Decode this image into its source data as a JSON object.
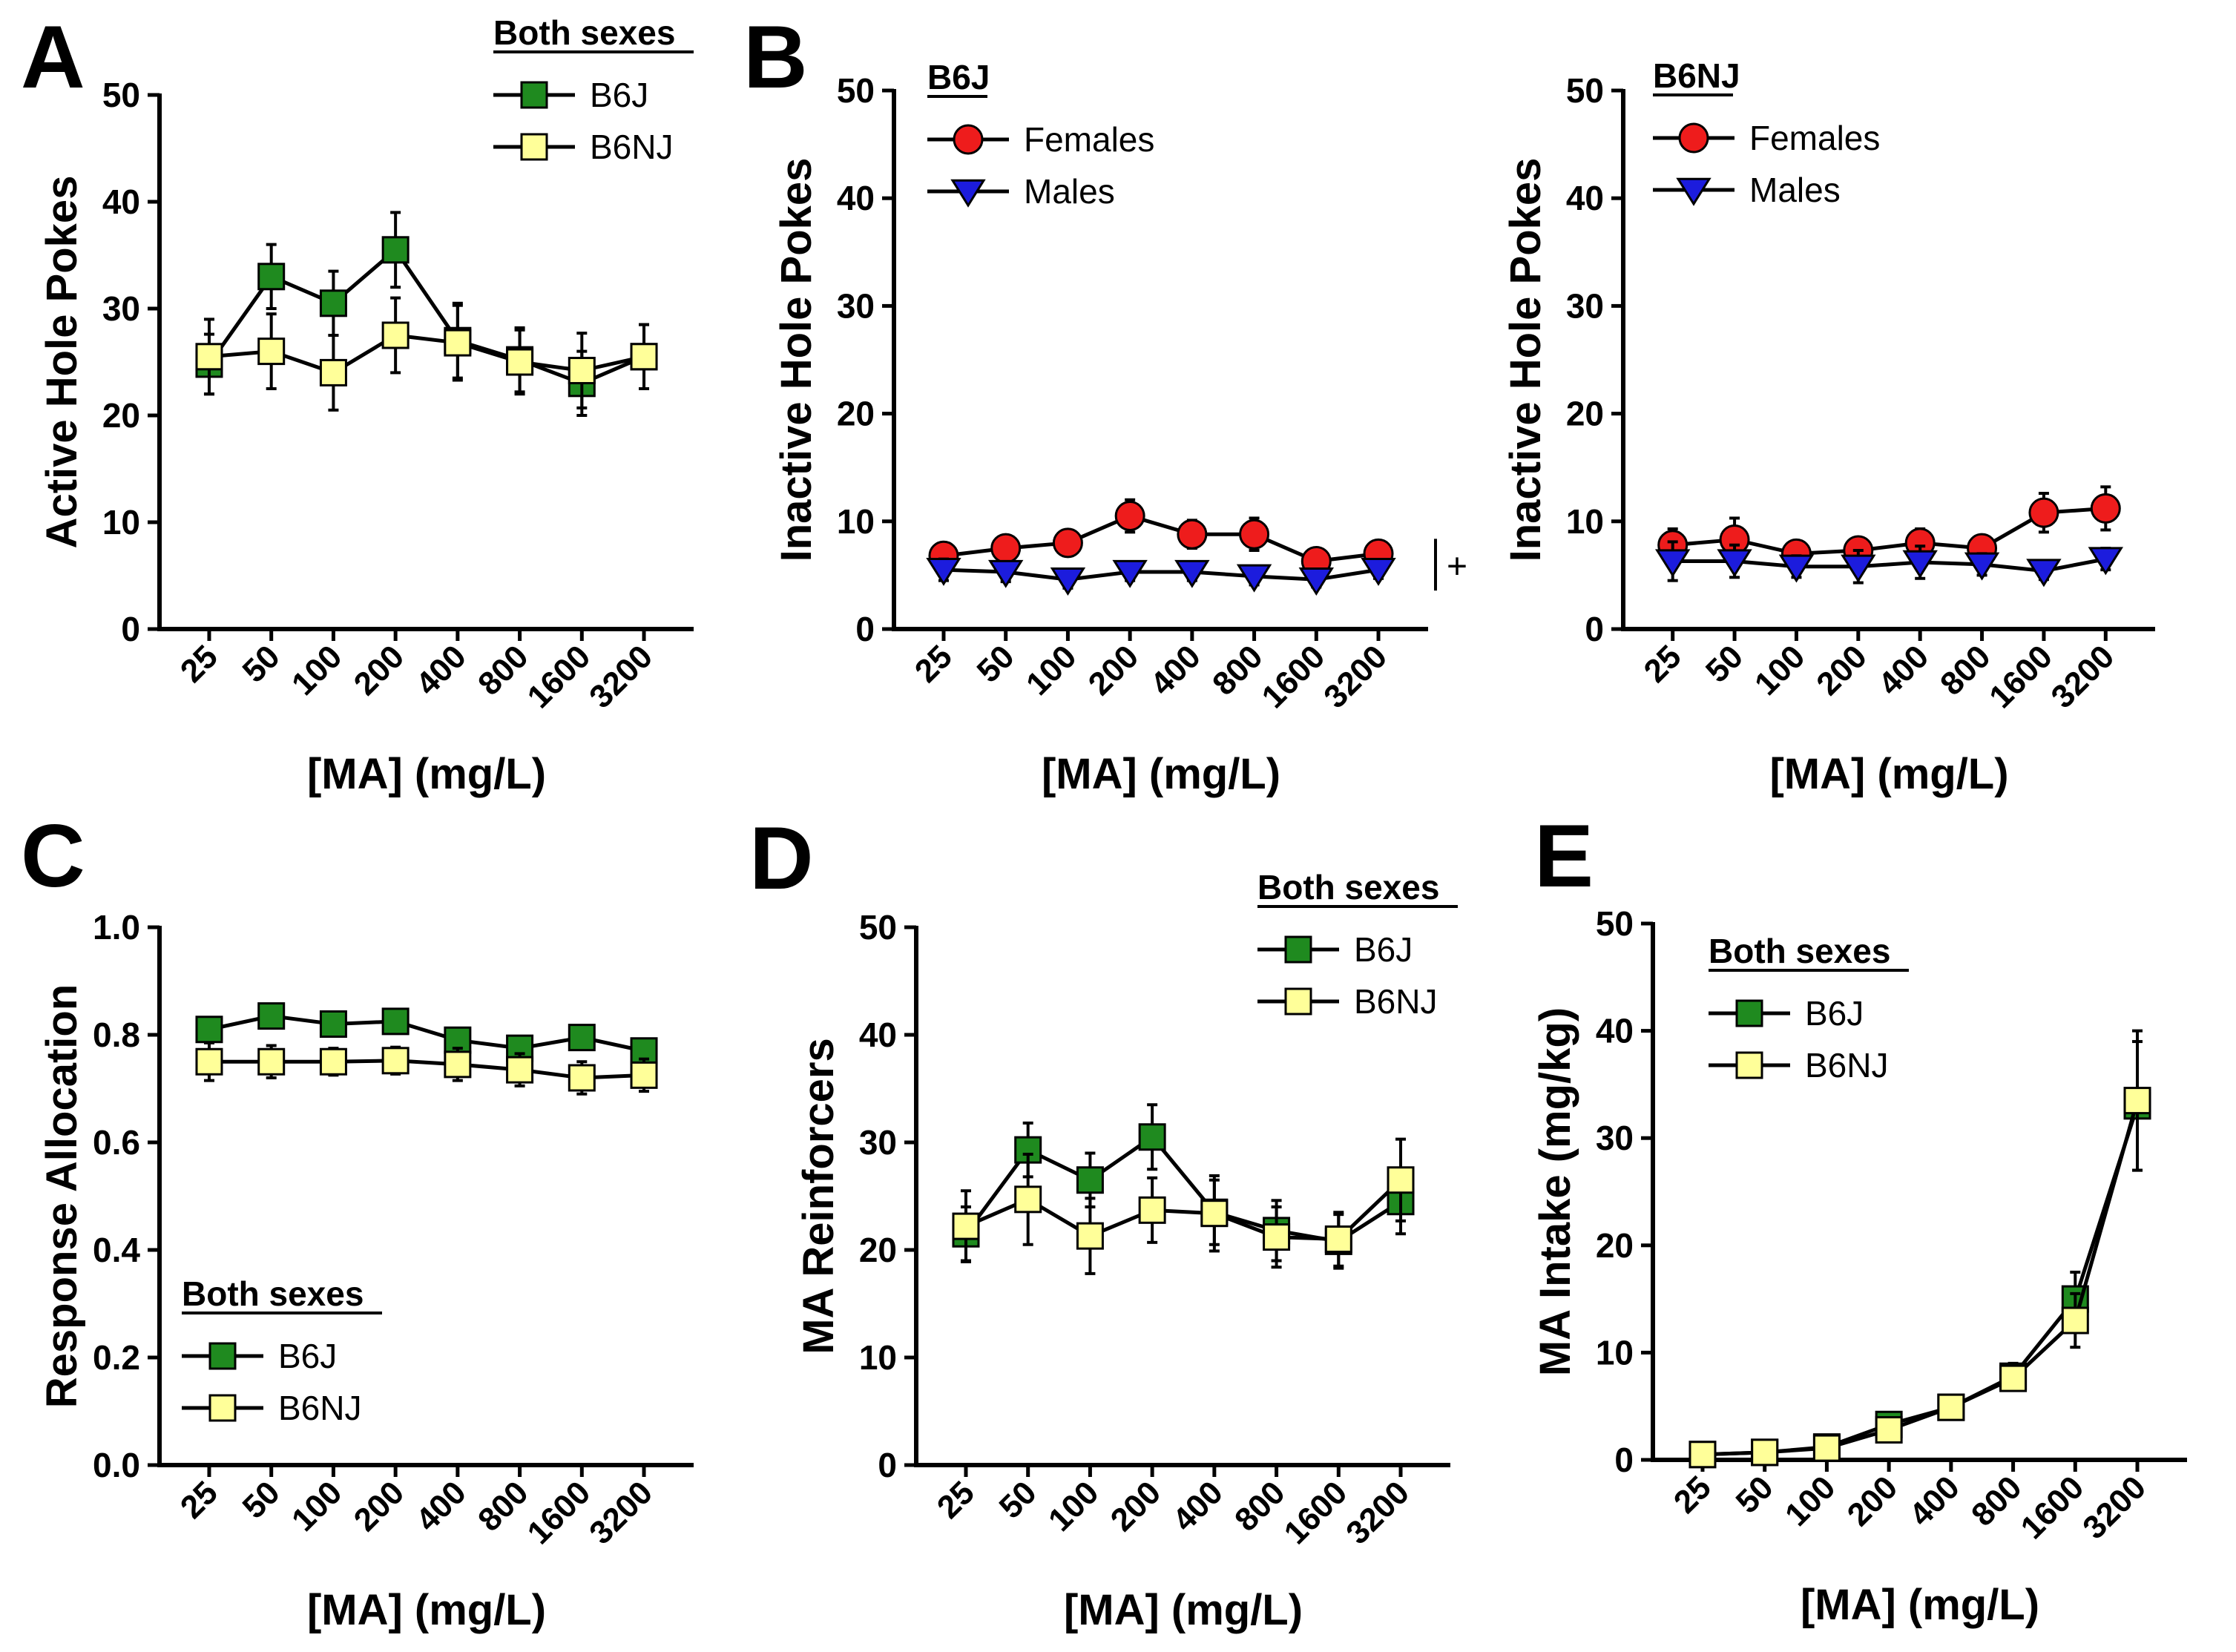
{
  "colors": {
    "B6J": "#1f8a1f",
    "B6NJ": "#ffff99",
    "Females": "#ee1c1c",
    "Males": "#1c1cdd",
    "line": "#000000"
  },
  "chart_data": [
    {
      "panel": "A",
      "type": "line",
      "ylabel": "Active Hole Pokes",
      "xlabel": "[MA] (mg/L)",
      "categories": [
        "25",
        "50",
        "100",
        "200",
        "400",
        "800",
        "1600",
        "3200"
      ],
      "ylim": [
        0,
        50
      ],
      "yticks": [
        "0",
        "10",
        "20",
        "30",
        "40",
        "50"
      ],
      "legend": {
        "title": "Both sexes",
        "position": "top-right"
      },
      "series": [
        {
          "name": "B6J",
          "marker": "square",
          "color": "#1f8a1f",
          "values": [
            24.8,
            33.0,
            30.5,
            35.5,
            27.0,
            25.2,
            23.0,
            25.5
          ],
          "errors": [
            2.8,
            3.0,
            3.0,
            3.5,
            3.5,
            3.0,
            3.0,
            3.0
          ]
        },
        {
          "name": "B6NJ",
          "marker": "square",
          "color": "#ffff99",
          "values": [
            25.5,
            26.0,
            24.0,
            27.5,
            26.8,
            25.0,
            24.2,
            25.5
          ],
          "errors": [
            3.5,
            3.5,
            3.5,
            3.5,
            3.5,
            3.0,
            3.5,
            3.0
          ]
        }
      ]
    },
    {
      "panel": "B",
      "type": "line",
      "ylabel": "Inactive Hole Pokes",
      "xlabel": "[MA] (mg/L)",
      "categories": [
        "25",
        "50",
        "100",
        "200",
        "400",
        "800",
        "1600",
        "3200"
      ],
      "ylim": [
        0,
        50
      ],
      "yticks": [
        "0",
        "10",
        "20",
        "30",
        "40",
        "50"
      ],
      "legend": {
        "title": "B6J",
        "position": "top-left"
      },
      "annotation": "+",
      "series": [
        {
          "name": "Females",
          "marker": "circle",
          "color": "#ee1c1c",
          "values": [
            6.8,
            7.5,
            8.0,
            10.5,
            8.8,
            8.8,
            6.3,
            7.0
          ],
          "errors": [
            1.0,
            1.0,
            1.2,
            1.5,
            1.3,
            1.5,
            0.8,
            1.0
          ]
        },
        {
          "name": "Males",
          "marker": "triangle-down",
          "color": "#1c1cdd",
          "values": [
            5.5,
            5.3,
            4.6,
            5.3,
            5.3,
            4.9,
            4.6,
            5.5
          ],
          "errors": [
            1.0,
            0.9,
            0.8,
            0.8,
            0.8,
            0.8,
            0.7,
            0.8
          ]
        }
      ]
    },
    {
      "panel": "B-right",
      "type": "line",
      "ylabel": "Inactive Hole Pokes",
      "xlabel": "[MA] (mg/L)",
      "categories": [
        "25",
        "50",
        "100",
        "200",
        "400",
        "800",
        "1600",
        "3200"
      ],
      "ylim": [
        0,
        50
      ],
      "yticks": [
        "0",
        "10",
        "20",
        "30",
        "40",
        "50"
      ],
      "legend": {
        "title": "B6NJ",
        "position": "top-left"
      },
      "series": [
        {
          "name": "Females",
          "marker": "circle",
          "color": "#ee1c1c",
          "values": [
            7.8,
            8.3,
            7.0,
            7.3,
            8.0,
            7.5,
            10.8,
            11.2
          ],
          "errors": [
            1.5,
            2.0,
            1.0,
            1.0,
            1.3,
            1.0,
            1.8,
            2.0
          ]
        },
        {
          "name": "Males",
          "marker": "triangle-down",
          "color": "#1c1cdd",
          "values": [
            6.3,
            6.3,
            5.8,
            5.8,
            6.2,
            6.0,
            5.4,
            6.5
          ],
          "errors": [
            1.8,
            1.5,
            1.0,
            1.5,
            1.5,
            1.0,
            0.8,
            1.0
          ]
        }
      ]
    },
    {
      "panel": "C",
      "type": "line",
      "ylabel": "Response Allocation",
      "xlabel": "[MA] (mg/L)",
      "categories": [
        "25",
        "50",
        "100",
        "200",
        "400",
        "800",
        "1600",
        "3200"
      ],
      "ylim": [
        0,
        1
      ],
      "yticks": [
        "0.0",
        "0.2",
        "0.4",
        "0.6",
        "0.8",
        "1.0"
      ],
      "legend": {
        "title": "Both sexes",
        "position": "bottom-left"
      },
      "series": [
        {
          "name": "B6J",
          "marker": "square",
          "color": "#1f8a1f",
          "values": [
            0.81,
            0.835,
            0.82,
            0.825,
            0.79,
            0.775,
            0.795,
            0.77
          ],
          "errors": [
            0.02,
            0.02,
            0.02,
            0.02,
            0.02,
            0.02,
            0.02,
            0.02
          ]
        },
        {
          "name": "B6NJ",
          "marker": "square",
          "color": "#ffff99",
          "values": [
            0.75,
            0.75,
            0.75,
            0.752,
            0.745,
            0.735,
            0.72,
            0.725
          ],
          "errors": [
            0.035,
            0.03,
            0.025,
            0.025,
            0.03,
            0.03,
            0.03,
            0.03
          ]
        }
      ]
    },
    {
      "panel": "D",
      "type": "line",
      "ylabel": "MA Reinforcers",
      "xlabel": "[MA] (mg/L)",
      "categories": [
        "25",
        "50",
        "100",
        "200",
        "400",
        "800",
        "1600",
        "3200"
      ],
      "ylim": [
        0,
        50
      ],
      "yticks": [
        "0",
        "10",
        "20",
        "30",
        "40",
        "50"
      ],
      "legend": {
        "title": "Both sexes",
        "position": "top-right"
      },
      "series": [
        {
          "name": "B6J",
          "marker": "square",
          "color": "#1f8a1f",
          "values": [
            21.5,
            29.3,
            26.5,
            30.5,
            23.5,
            21.8,
            20.8,
            24.5
          ],
          "errors": [
            2.5,
            2.5,
            2.5,
            3.0,
            3.0,
            2.8,
            2.5,
            3.0
          ]
        },
        {
          "name": "B6NJ",
          "marker": "square",
          "color": "#ffff99",
          "values": [
            22.2,
            24.7,
            21.3,
            23.7,
            23.4,
            21.2,
            21.0,
            26.5
          ],
          "errors": [
            3.3,
            4.2,
            3.5,
            3.0,
            3.5,
            2.8,
            2.5,
            3.8
          ]
        }
      ]
    },
    {
      "panel": "E",
      "type": "line",
      "ylabel": "MA Intake (mg/kg)",
      "xlabel": "[MA] (mg/L)",
      "categories": [
        "25",
        "50",
        "100",
        "200",
        "400",
        "800",
        "1600",
        "3200"
      ],
      "ylim": [
        0,
        50
      ],
      "yticks": [
        "0",
        "10",
        "20",
        "30",
        "40",
        "50"
      ],
      "legend": {
        "title": "Both sexes",
        "position": "top-left"
      },
      "series": [
        {
          "name": "B6J",
          "marker": "square",
          "color": "#1f8a1f",
          "values": [
            0.5,
            0.7,
            1.2,
            3.3,
            4.9,
            7.8,
            15.0,
            33.0
          ],
          "errors": [
            0.2,
            0.3,
            0.4,
            1.0,
            0.8,
            1.2,
            2.5,
            6.0
          ]
        },
        {
          "name": "B6NJ",
          "marker": "square",
          "color": "#ffff99",
          "values": [
            0.5,
            0.7,
            1.1,
            2.8,
            4.9,
            7.6,
            13.0,
            33.5
          ],
          "errors": [
            0.2,
            0.3,
            0.4,
            0.8,
            0.8,
            1.0,
            2.5,
            6.5
          ]
        }
      ]
    }
  ]
}
